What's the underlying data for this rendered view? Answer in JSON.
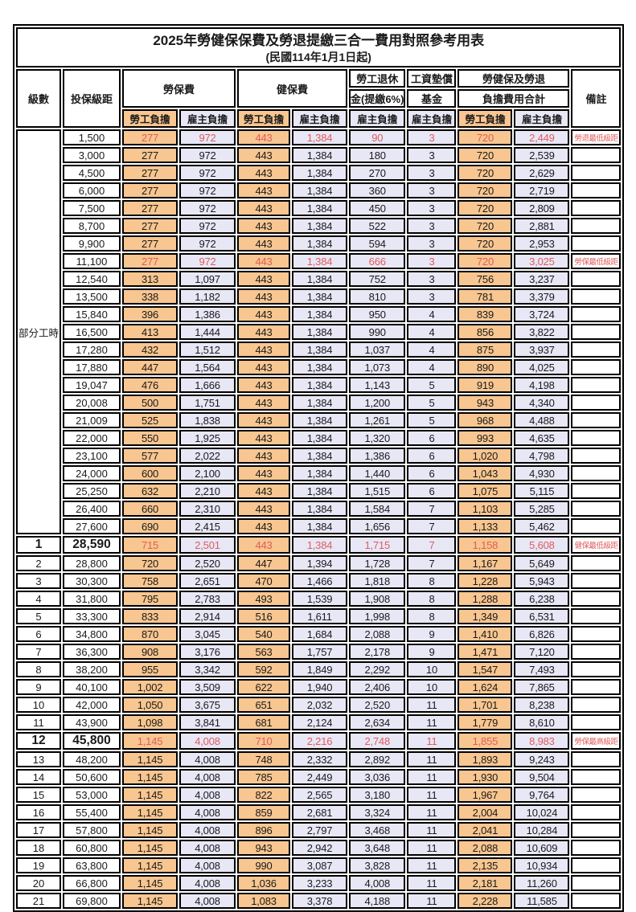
{
  "title": "2025年勞健保保費及勞退提繳三合一費用對照參考用表",
  "subtitle": "(民國114年1月1日起)",
  "header": {
    "level": "級數",
    "bracket": "投保級距",
    "labor": "勞保費",
    "health": "健保費",
    "pension_top": "勞工退休",
    "pension_bottom": "金(提繳6%)",
    "fund_top": "工資墊償",
    "fund_bottom": "基金",
    "total_top": "勞健保及勞退",
    "total_bottom": "負擔費用合計",
    "note": "備註",
    "employee": "勞工負擔",
    "employer": "雇主負擔"
  },
  "part_time_label": "部分工時",
  "colors": {
    "employee_bg": "#F8C690",
    "employer_bg": "#E8E7F6",
    "highlight_text": "#E05C5C",
    "border": "#000000"
  },
  "rows": [
    {
      "bracket": "1,500",
      "values": [
        "277",
        "972",
        "443",
        "1,384",
        "90",
        "3",
        "720",
        "2,449"
      ],
      "note": "勞退最低級距",
      "red": true
    },
    {
      "bracket": "3,000",
      "values": [
        "277",
        "972",
        "443",
        "1,384",
        "180",
        "3",
        "720",
        "2,539"
      ]
    },
    {
      "bracket": "4,500",
      "values": [
        "277",
        "972",
        "443",
        "1,384",
        "270",
        "3",
        "720",
        "2,629"
      ]
    },
    {
      "bracket": "6,000",
      "values": [
        "277",
        "972",
        "443",
        "1,384",
        "360",
        "3",
        "720",
        "2,719"
      ]
    },
    {
      "bracket": "7,500",
      "values": [
        "277",
        "972",
        "443",
        "1,384",
        "450",
        "3",
        "720",
        "2,809"
      ]
    },
    {
      "bracket": "8,700",
      "values": [
        "277",
        "972",
        "443",
        "1,384",
        "522",
        "3",
        "720",
        "2,881"
      ]
    },
    {
      "bracket": "9,900",
      "values": [
        "277",
        "972",
        "443",
        "1,384",
        "594",
        "3",
        "720",
        "2,953"
      ]
    },
    {
      "bracket": "11,100",
      "values": [
        "277",
        "972",
        "443",
        "1,384",
        "666",
        "3",
        "720",
        "3,025"
      ],
      "note": "勞保最低級距",
      "red": true
    },
    {
      "bracket": "12,540",
      "values": [
        "313",
        "1,097",
        "443",
        "1,384",
        "752",
        "3",
        "756",
        "3,237"
      ]
    },
    {
      "bracket": "13,500",
      "values": [
        "338",
        "1,182",
        "443",
        "1,384",
        "810",
        "3",
        "781",
        "3,379"
      ]
    },
    {
      "bracket": "15,840",
      "values": [
        "396",
        "1,386",
        "443",
        "1,384",
        "950",
        "4",
        "839",
        "3,724"
      ]
    },
    {
      "bracket": "16,500",
      "values": [
        "413",
        "1,444",
        "443",
        "1,384",
        "990",
        "4",
        "856",
        "3,822"
      ]
    },
    {
      "bracket": "17,280",
      "values": [
        "432",
        "1,512",
        "443",
        "1,384",
        "1,037",
        "4",
        "875",
        "3,937"
      ]
    },
    {
      "bracket": "17,880",
      "values": [
        "447",
        "1,564",
        "443",
        "1,384",
        "1,073",
        "4",
        "890",
        "4,025"
      ]
    },
    {
      "bracket": "19,047",
      "values": [
        "476",
        "1,666",
        "443",
        "1,384",
        "1,143",
        "5",
        "919",
        "4,198"
      ]
    },
    {
      "bracket": "20,008",
      "values": [
        "500",
        "1,751",
        "443",
        "1,384",
        "1,200",
        "5",
        "943",
        "4,340"
      ]
    },
    {
      "bracket": "21,009",
      "values": [
        "525",
        "1,838",
        "443",
        "1,384",
        "1,261",
        "5",
        "968",
        "4,488"
      ]
    },
    {
      "bracket": "22,000",
      "values": [
        "550",
        "1,925",
        "443",
        "1,384",
        "1,320",
        "6",
        "993",
        "4,635"
      ]
    },
    {
      "bracket": "23,100",
      "values": [
        "577",
        "2,022",
        "443",
        "1,384",
        "1,386",
        "6",
        "1,020",
        "4,798"
      ]
    },
    {
      "bracket": "24,000",
      "values": [
        "600",
        "2,100",
        "443",
        "1,384",
        "1,440",
        "6",
        "1,043",
        "4,930"
      ]
    },
    {
      "bracket": "25,250",
      "values": [
        "632",
        "2,210",
        "443",
        "1,384",
        "1,515",
        "6",
        "1,075",
        "5,115"
      ]
    },
    {
      "bracket": "26,400",
      "values": [
        "660",
        "2,310",
        "443",
        "1,384",
        "1,584",
        "7",
        "1,103",
        "5,285"
      ]
    },
    {
      "bracket": "27,600",
      "values": [
        "690",
        "2,415",
        "443",
        "1,384",
        "1,656",
        "7",
        "1,133",
        "5,462"
      ]
    },
    {
      "level": "1",
      "bracket": "28,590",
      "values": [
        "715",
        "2,501",
        "443",
        "1,384",
        "1,715",
        "7",
        "1,158",
        "5,608"
      ],
      "note": "健保最低級距",
      "red": true,
      "big": true
    },
    {
      "level": "2",
      "bracket": "28,800",
      "values": [
        "720",
        "2,520",
        "447",
        "1,394",
        "1,728",
        "7",
        "1,167",
        "5,649"
      ]
    },
    {
      "level": "3",
      "bracket": "30,300",
      "values": [
        "758",
        "2,651",
        "470",
        "1,466",
        "1,818",
        "8",
        "1,228",
        "5,943"
      ]
    },
    {
      "level": "4",
      "bracket": "31,800",
      "values": [
        "795",
        "2,783",
        "493",
        "1,539",
        "1,908",
        "8",
        "1,288",
        "6,238"
      ]
    },
    {
      "level": "5",
      "bracket": "33,300",
      "values": [
        "833",
        "2,914",
        "516",
        "1,611",
        "1,998",
        "8",
        "1,349",
        "6,531"
      ]
    },
    {
      "level": "6",
      "bracket": "34,800",
      "values": [
        "870",
        "3,045",
        "540",
        "1,684",
        "2,088",
        "9",
        "1,410",
        "6,826"
      ]
    },
    {
      "level": "7",
      "bracket": "36,300",
      "values": [
        "908",
        "3,176",
        "563",
        "1,757",
        "2,178",
        "9",
        "1,471",
        "7,120"
      ]
    },
    {
      "level": "8",
      "bracket": "38,200",
      "values": [
        "955",
        "3,342",
        "592",
        "1,849",
        "2,292",
        "10",
        "1,547",
        "7,493"
      ]
    },
    {
      "level": "9",
      "bracket": "40,100",
      "values": [
        "1,002",
        "3,509",
        "622",
        "1,940",
        "2,406",
        "10",
        "1,624",
        "7,865"
      ]
    },
    {
      "level": "10",
      "bracket": "42,000",
      "values": [
        "1,050",
        "3,675",
        "651",
        "2,032",
        "2,520",
        "11",
        "1,701",
        "8,238"
      ]
    },
    {
      "level": "11",
      "bracket": "43,900",
      "values": [
        "1,098",
        "3,841",
        "681",
        "2,124",
        "2,634",
        "11",
        "1,779",
        "8,610"
      ]
    },
    {
      "level": "12",
      "bracket": "45,800",
      "values": [
        "1,145",
        "4,008",
        "710",
        "2,216",
        "2,748",
        "11",
        "1,855",
        "8,983"
      ],
      "note": "勞保最高級距",
      "red": true,
      "big": true
    },
    {
      "level": "13",
      "bracket": "48,200",
      "values": [
        "1,145",
        "4,008",
        "748",
        "2,332",
        "2,892",
        "11",
        "1,893",
        "9,243"
      ]
    },
    {
      "level": "14",
      "bracket": "50,600",
      "values": [
        "1,145",
        "4,008",
        "785",
        "2,449",
        "3,036",
        "11",
        "1,930",
        "9,504"
      ]
    },
    {
      "level": "15",
      "bracket": "53,000",
      "values": [
        "1,145",
        "4,008",
        "822",
        "2,565",
        "3,180",
        "11",
        "1,967",
        "9,764"
      ]
    },
    {
      "level": "16",
      "bracket": "55,400",
      "values": [
        "1,145",
        "4,008",
        "859",
        "2,681",
        "3,324",
        "11",
        "2,004",
        "10,024"
      ]
    },
    {
      "level": "17",
      "bracket": "57,800",
      "values": [
        "1,145",
        "4,008",
        "896",
        "2,797",
        "3,468",
        "11",
        "2,041",
        "10,284"
      ]
    },
    {
      "level": "18",
      "bracket": "60,800",
      "values": [
        "1,145",
        "4,008",
        "943",
        "2,942",
        "3,648",
        "11",
        "2,088",
        "10,609"
      ]
    },
    {
      "level": "19",
      "bracket": "63,800",
      "values": [
        "1,145",
        "4,008",
        "990",
        "3,087",
        "3,828",
        "11",
        "2,135",
        "10,934"
      ]
    },
    {
      "level": "20",
      "bracket": "66,800",
      "values": [
        "1,145",
        "4,008",
        "1,036",
        "3,233",
        "4,008",
        "11",
        "2,181",
        "11,260"
      ]
    },
    {
      "level": "21",
      "bracket": "69,800",
      "values": [
        "1,145",
        "4,008",
        "1,083",
        "3,378",
        "4,188",
        "11",
        "2,228",
        "11,585"
      ]
    }
  ]
}
